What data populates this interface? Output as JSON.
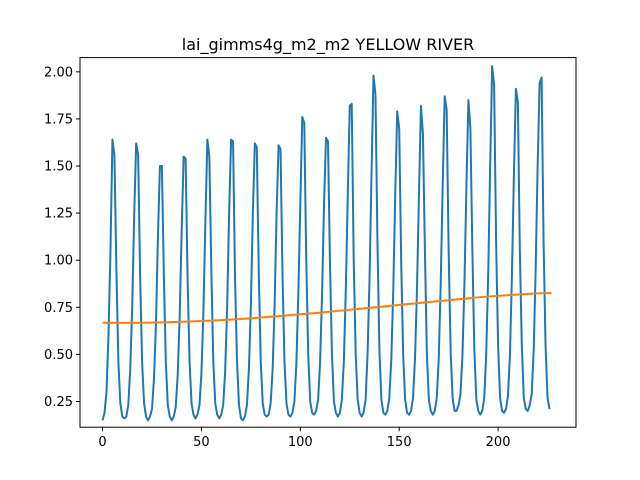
{
  "chart_data": {
    "type": "line",
    "title": "lai_gimms4g_m2_m2 YELLOW RIVER",
    "xlabel": "",
    "ylabel": "",
    "xlim": [
      -11.4,
      239.4
    ],
    "ylim": [
      0.1135,
      2.0755
    ],
    "xticks": [
      0,
      50,
      100,
      150,
      200
    ],
    "xtick_labels": [
      "0",
      "50",
      "100",
      "150",
      "200"
    ],
    "yticks": [
      0.25,
      0.5,
      0.75,
      1.0,
      1.25,
      1.5,
      1.75,
      2.0
    ],
    "ytick_labels": [
      "0.25",
      "0.50",
      "0.75",
      "1.00",
      "1.25",
      "1.50",
      "1.75",
      "2.00"
    ],
    "grid": false,
    "legend": false,
    "series": [
      {
        "color": "#1f77b4",
        "x_start": 0,
        "x_step": 1,
        "values": [
          0.15,
          0.19,
          0.3,
          0.6,
          1.05,
          1.64,
          1.56,
          0.95,
          0.46,
          0.24,
          0.17,
          0.16,
          0.17,
          0.23,
          0.42,
          0.75,
          1.24,
          1.62,
          1.56,
          0.92,
          0.46,
          0.24,
          0.17,
          0.15,
          0.17,
          0.21,
          0.37,
          0.66,
          1.12,
          1.5,
          1.5,
          0.92,
          0.46,
          0.23,
          0.17,
          0.15,
          0.17,
          0.22,
          0.39,
          0.7,
          1.15,
          1.55,
          1.54,
          0.9,
          0.46,
          0.24,
          0.18,
          0.16,
          0.18,
          0.23,
          0.4,
          0.73,
          1.2,
          1.64,
          1.55,
          0.95,
          0.46,
          0.24,
          0.18,
          0.16,
          0.18,
          0.23,
          0.41,
          0.75,
          1.25,
          1.64,
          1.63,
          0.9,
          0.46,
          0.23,
          0.16,
          0.15,
          0.17,
          0.23,
          0.42,
          0.76,
          1.25,
          1.62,
          1.6,
          0.93,
          0.46,
          0.24,
          0.18,
          0.17,
          0.18,
          0.24,
          0.42,
          0.76,
          1.25,
          1.61,
          1.59,
          0.92,
          0.46,
          0.24,
          0.18,
          0.17,
          0.19,
          0.25,
          0.45,
          0.82,
          1.3,
          1.76,
          1.73,
          1.0,
          0.5,
          0.25,
          0.19,
          0.18,
          0.2,
          0.26,
          0.46,
          0.82,
          1.3,
          1.65,
          1.63,
          0.98,
          0.5,
          0.25,
          0.19,
          0.17,
          0.19,
          0.26,
          0.46,
          0.84,
          1.35,
          1.82,
          1.83,
          1.0,
          0.5,
          0.26,
          0.19,
          0.17,
          0.19,
          0.26,
          0.5,
          0.9,
          1.45,
          1.98,
          1.88,
          1.1,
          0.52,
          0.26,
          0.19,
          0.18,
          0.2,
          0.27,
          0.47,
          0.84,
          1.35,
          1.79,
          1.7,
          1.0,
          0.5,
          0.26,
          0.19,
          0.18,
          0.2,
          0.27,
          0.48,
          0.85,
          1.35,
          1.82,
          1.67,
          1.05,
          0.5,
          0.26,
          0.2,
          0.18,
          0.2,
          0.27,
          0.48,
          0.88,
          1.4,
          1.87,
          1.8,
          1.05,
          0.52,
          0.27,
          0.2,
          0.2,
          0.23,
          0.29,
          0.5,
          0.88,
          1.4,
          1.85,
          1.7,
          1.05,
          0.52,
          0.26,
          0.2,
          0.18,
          0.2,
          0.27,
          0.5,
          0.92,
          1.5,
          2.03,
          1.93,
          1.1,
          0.55,
          0.27,
          0.2,
          0.19,
          0.21,
          0.28,
          0.5,
          0.92,
          1.45,
          1.91,
          1.84,
          1.05,
          0.55,
          0.27,
          0.21,
          0.2,
          0.23,
          0.29,
          0.52,
          0.95,
          1.5,
          1.94,
          1.97,
          1.1,
          0.55,
          0.27,
          0.21
        ]
      },
      {
        "color": "#ff7f0e",
        "x": [
          0,
          10,
          20,
          30,
          40,
          50,
          60,
          70,
          80,
          90,
          100,
          110,
          120,
          130,
          140,
          150,
          160,
          170,
          180,
          190,
          200,
          210,
          220,
          227
        ],
        "values": [
          0.668,
          0.667,
          0.668,
          0.67,
          0.673,
          0.677,
          0.682,
          0.688,
          0.696,
          0.704,
          0.713,
          0.722,
          0.732,
          0.742,
          0.752,
          0.763,
          0.773,
          0.783,
          0.793,
          0.803,
          0.811,
          0.818,
          0.824,
          0.826
        ]
      }
    ]
  }
}
